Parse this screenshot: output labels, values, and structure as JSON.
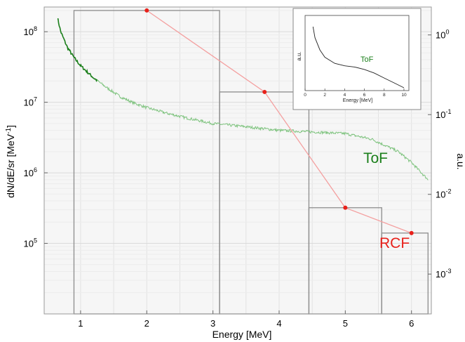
{
  "chart_data": {
    "type": "line",
    "xlabel": "Energy [MeV]",
    "ylabel": "dN/dE/sr [MeV",
    "ylabel_sup": "-1",
    "ylabel_close": "]",
    "y2label": "a.u.",
    "xlim": [
      0.45,
      6.3
    ],
    "ylim_log": [
      4.0,
      8.35
    ],
    "y2lim_log": [
      -3.5,
      0.35
    ],
    "x_ticks": [
      1,
      2,
      3,
      4,
      5,
      6
    ],
    "y_ticks": [
      {
        "exp": 5,
        "label": "10",
        "sup": "5"
      },
      {
        "exp": 6,
        "label": "10",
        "sup": "6"
      },
      {
        "exp": 7,
        "label": "10",
        "sup": "7"
      },
      {
        "exp": 8,
        "label": "10",
        "sup": "8"
      }
    ],
    "y2_ticks": [
      {
        "exp": 0,
        "label": "10",
        "sup": "0"
      },
      {
        "exp": -1,
        "label": "10",
        "sup": "-1"
      },
      {
        "exp": -2,
        "label": "10",
        "sup": "-2"
      },
      {
        "exp": -3,
        "label": "10",
        "sup": "-3"
      }
    ],
    "grid": true,
    "series": [
      {
        "name": "ToF",
        "kind": "line",
        "color": "#1b7f1b",
        "x": [
          0.65,
          0.7,
          0.8,
          0.9,
          1.0,
          1.2,
          1.4,
          1.6,
          1.8,
          2.0,
          2.3,
          2.6,
          3.0,
          3.5,
          4.0,
          4.5,
          5.0,
          5.4,
          5.8,
          6.0,
          6.25
        ],
        "y": [
          160000000.0,
          100000000.0,
          60000000.0,
          43000000.0,
          33000000.0,
          22000000.0,
          16000000.0,
          12000000.0,
          9800000.0,
          8400000.0,
          7000000.0,
          6000000.0,
          5000000.0,
          4500000.0,
          4000000.0,
          3800000.0,
          3600000.0,
          3000000.0,
          2000000.0,
          1400000.0,
          800000.0
        ]
      },
      {
        "name": "RCF",
        "kind": "points",
        "color": "#e8201a",
        "x": [
          2.0,
          3.78,
          5.0,
          6.0
        ],
        "y": [
          200000000.0,
          14000000.0,
          320000.0,
          140000.0
        ],
        "bins": [
          {
            "x0": 0.9,
            "x1": 3.1,
            "y": 200000000.0
          },
          {
            "x0": 3.1,
            "x1": 4.45,
            "y": 14000000.0
          },
          {
            "x0": 4.45,
            "x1": 5.55,
            "y": 320000.0
          },
          {
            "x0": 5.55,
            "x1": 6.25,
            "y": 140000.0
          }
        ]
      }
    ],
    "labels": {
      "tof": "ToF",
      "rcf": "RCF"
    },
    "inset": {
      "xlabel": "Energy [MeV]",
      "ylabel": "a.u.",
      "label": "ToF",
      "xlim": [
        0,
        10.5
      ],
      "x_ticks": [
        0,
        2,
        4,
        6,
        8,
        10
      ],
      "curve_x": [
        0.8,
        1.0,
        1.5,
        2.0,
        3.0,
        4.0,
        5.0,
        6.0,
        7.0,
        8.0,
        9.0,
        10.0
      ],
      "curve_y": [
        1.0,
        0.82,
        0.62,
        0.5,
        0.4,
        0.36,
        0.34,
        0.3,
        0.24,
        0.16,
        0.08,
        0.0
      ]
    }
  }
}
